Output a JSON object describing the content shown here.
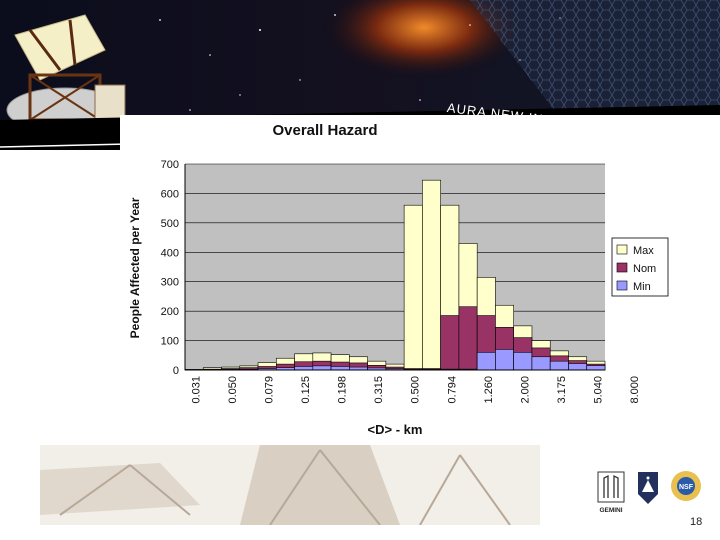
{
  "banner": {
    "text": "AURA NEW INITIATIVES OFFICE"
  },
  "page_number": "18",
  "chart_data": {
    "type": "bar",
    "title": "Overall Hazard",
    "xlabel": "<D> - km",
    "ylabel": "People Affected per Year",
    "ylim": [
      0,
      700
    ],
    "yticks": [
      0,
      100,
      200,
      300,
      400,
      500,
      600,
      700
    ],
    "grid": true,
    "legend_position": "right",
    "tick_labels": [
      "0.031",
      "0.050",
      "0.079",
      "0.125",
      "0.198",
      "0.315",
      "0.500",
      "0.794",
      "1.260",
      "2.000",
      "3.175",
      "5.040",
      "8.000"
    ],
    "series": [
      {
        "name": "Max",
        "color": "#ffffcc",
        "values": [
          2,
          8,
          10,
          14,
          25,
          40,
          55,
          58,
          52,
          45,
          30,
          20,
          560,
          645,
          560,
          430,
          315,
          220,
          150,
          100,
          65,
          45,
          30
        ]
      },
      {
        "name": "Nom",
        "color": "#993366",
        "values": [
          1,
          3,
          5,
          8,
          12,
          20,
          28,
          30,
          27,
          24,
          16,
          10,
          5,
          5,
          185,
          215,
          185,
          145,
          110,
          75,
          48,
          32,
          20
        ]
      },
      {
        "name": "Min",
        "color": "#9999ff",
        "values": [
          0,
          1,
          2,
          3,
          5,
          8,
          12,
          14,
          12,
          10,
          7,
          4,
          2,
          2,
          3,
          3,
          60,
          70,
          60,
          45,
          30,
          22,
          15
        ]
      }
    ]
  }
}
